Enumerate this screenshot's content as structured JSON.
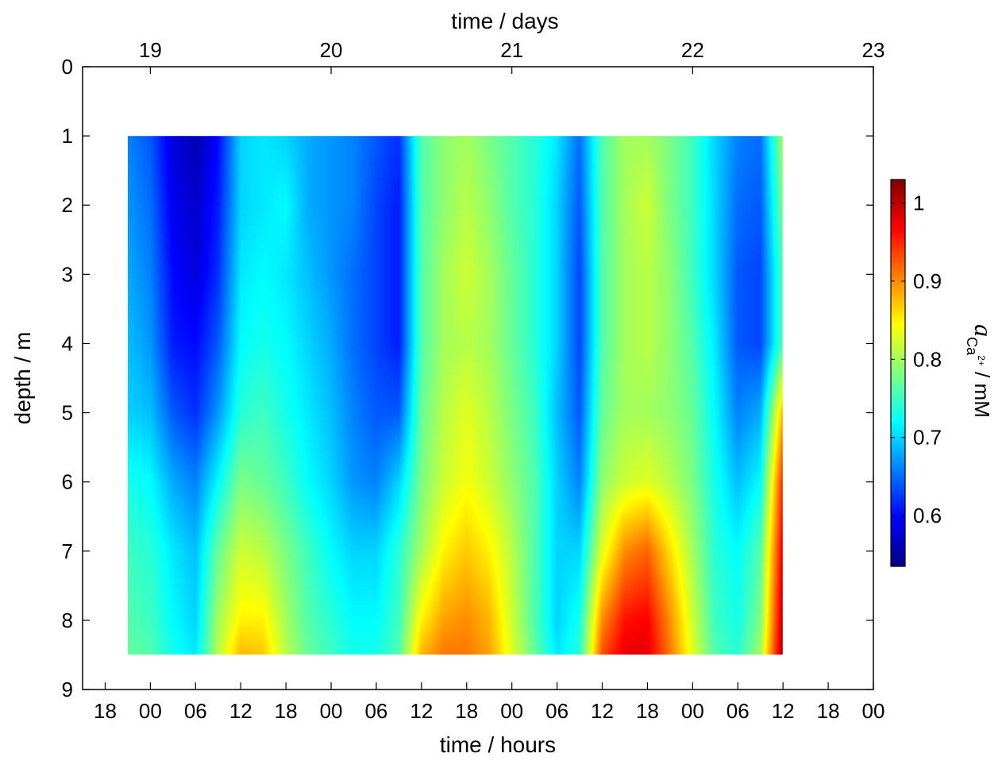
{
  "chart_data": {
    "type": "heatmap",
    "title": "",
    "xlabel_bottom": "time / hours",
    "xlabel_top": "time / days",
    "ylabel": "depth / m",
    "colorbar_label_prefix": "a",
    "colorbar_label_sub": "Ca",
    "colorbar_label_sup": "2+",
    "colorbar_label_suffix": " / mM",
    "x_range_days": [
      18.625,
      23.0
    ],
    "y_range": [
      0,
      9
    ],
    "data_x_extent_days": [
      18.875,
      22.5
    ],
    "data_y_extent": [
      1.0,
      8.5
    ],
    "bottom_ticks": [
      "18",
      "00",
      "06",
      "12",
      "18",
      "00",
      "06",
      "12",
      "18",
      "00",
      "06",
      "12",
      "18",
      "00",
      "06",
      "12",
      "18",
      "00"
    ],
    "top_ticks": [
      "19",
      "20",
      "21",
      "22",
      "23"
    ],
    "y_ticks": [
      "0",
      "1",
      "2",
      "3",
      "4",
      "5",
      "6",
      "7",
      "8",
      "9"
    ],
    "colorbar_ticks": [
      "0.6",
      "0.7",
      "0.8",
      "0.9",
      "1"
    ],
    "colorbar_range": [
      0.535,
      1.03
    ],
    "colormap": "jet",
    "depths": [
      1.0,
      2.0,
      3.0,
      4.0,
      5.0,
      6.0,
      7.0,
      8.0,
      8.5
    ],
    "times_days": [
      18.875,
      19.0,
      19.125,
      19.25,
      19.375,
      19.5,
      19.625,
      19.75,
      19.875,
      20.0,
      20.125,
      20.25,
      20.375,
      20.5,
      20.625,
      20.75,
      20.875,
      21.0,
      21.125,
      21.25,
      21.375,
      21.5,
      21.625,
      21.75,
      21.875,
      22.0,
      22.125,
      22.25,
      22.375,
      22.5
    ],
    "values": [
      [
        0.66,
        0.64,
        0.58,
        0.56,
        0.6,
        0.7,
        0.71,
        0.7,
        0.68,
        0.67,
        0.66,
        0.64,
        0.62,
        0.76,
        0.79,
        0.8,
        0.78,
        0.76,
        0.74,
        0.71,
        0.65,
        0.76,
        0.8,
        0.8,
        0.78,
        0.75,
        0.7,
        0.66,
        0.65,
        0.8
      ],
      [
        0.67,
        0.65,
        0.59,
        0.57,
        0.61,
        0.7,
        0.71,
        0.72,
        0.68,
        0.67,
        0.66,
        0.63,
        0.61,
        0.76,
        0.79,
        0.81,
        0.79,
        0.76,
        0.74,
        0.7,
        0.64,
        0.76,
        0.8,
        0.82,
        0.78,
        0.75,
        0.7,
        0.65,
        0.64,
        0.78
      ],
      [
        0.68,
        0.66,
        0.6,
        0.58,
        0.62,
        0.71,
        0.72,
        0.71,
        0.69,
        0.67,
        0.65,
        0.63,
        0.61,
        0.76,
        0.8,
        0.82,
        0.8,
        0.77,
        0.74,
        0.7,
        0.63,
        0.76,
        0.8,
        0.81,
        0.79,
        0.75,
        0.7,
        0.64,
        0.63,
        0.76
      ],
      [
        0.69,
        0.67,
        0.61,
        0.6,
        0.64,
        0.72,
        0.73,
        0.72,
        0.7,
        0.68,
        0.65,
        0.63,
        0.61,
        0.76,
        0.8,
        0.81,
        0.8,
        0.77,
        0.74,
        0.7,
        0.63,
        0.76,
        0.8,
        0.81,
        0.79,
        0.76,
        0.71,
        0.64,
        0.63,
        0.76
      ],
      [
        0.7,
        0.69,
        0.64,
        0.62,
        0.67,
        0.74,
        0.75,
        0.73,
        0.71,
        0.69,
        0.66,
        0.64,
        0.64,
        0.77,
        0.81,
        0.83,
        0.81,
        0.78,
        0.75,
        0.69,
        0.64,
        0.77,
        0.8,
        0.8,
        0.79,
        0.77,
        0.72,
        0.66,
        0.68,
        0.88
      ],
      [
        0.73,
        0.72,
        0.68,
        0.66,
        0.72,
        0.78,
        0.77,
        0.75,
        0.72,
        0.7,
        0.67,
        0.66,
        0.7,
        0.78,
        0.82,
        0.84,
        0.82,
        0.79,
        0.76,
        0.7,
        0.66,
        0.79,
        0.82,
        0.83,
        0.81,
        0.78,
        0.73,
        0.69,
        0.72,
        0.95
      ],
      [
        0.75,
        0.74,
        0.71,
        0.69,
        0.77,
        0.82,
        0.81,
        0.78,
        0.75,
        0.72,
        0.7,
        0.7,
        0.74,
        0.8,
        0.85,
        0.87,
        0.85,
        0.81,
        0.76,
        0.7,
        0.7,
        0.83,
        0.9,
        0.92,
        0.86,
        0.8,
        0.74,
        0.72,
        0.76,
        0.98
      ],
      [
        0.76,
        0.75,
        0.72,
        0.7,
        0.8,
        0.85,
        0.85,
        0.8,
        0.76,
        0.74,
        0.72,
        0.72,
        0.75,
        0.85,
        0.89,
        0.9,
        0.88,
        0.82,
        0.76,
        0.7,
        0.73,
        0.9,
        0.96,
        0.97,
        0.9,
        0.82,
        0.75,
        0.73,
        0.78,
        1.0
      ],
      [
        0.77,
        0.76,
        0.73,
        0.71,
        0.81,
        0.88,
        0.87,
        0.81,
        0.77,
        0.75,
        0.73,
        0.73,
        0.76,
        0.88,
        0.91,
        0.91,
        0.89,
        0.83,
        0.77,
        0.71,
        0.74,
        0.93,
        0.98,
        0.98,
        0.91,
        0.83,
        0.76,
        0.74,
        0.8,
        1.01
      ]
    ]
  }
}
